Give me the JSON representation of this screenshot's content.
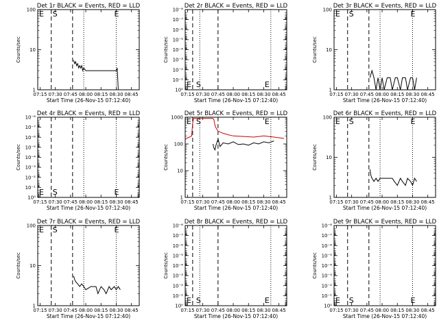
{
  "common": {
    "xticks": [
      "07:15",
      "07:30",
      "07:45",
      "08:00",
      "08:15",
      "08:30",
      "08:45"
    ],
    "xlabel": "Start Time (26-Nov-15 07:12:40)",
    "ylabel": "Counts/sec",
    "marker_s": "S",
    "marker_e": "E",
    "colors": {
      "events": "#000000",
      "lld": "#cc0000"
    }
  },
  "chart_data": [
    {
      "type": "line",
      "title": "Det 1r BLACK = Events, RED = LLD",
      "xlim": [
        "07:12:40",
        "08:52:40"
      ],
      "yscale": "log",
      "ylim": [
        1,
        100
      ],
      "yticks": [
        "1",
        "10",
        "100"
      ],
      "dashed_lines": [
        "07:26",
        "07:47"
      ],
      "dotted_lines": [
        "07:58",
        "08:30"
      ],
      "s_marker_at": "07:26",
      "e_marker_at": "08:30",
      "marker_row": "top",
      "series": [
        {
          "name": "Events",
          "color": "#000000",
          "x": [
            "07:48",
            "07:49",
            "07:50",
            "07:51",
            "07:52",
            "07:53",
            "07:54",
            "07:55",
            "07:56",
            "07:57",
            "07:58",
            "08:00",
            "08:05",
            "08:10",
            "08:15",
            "08:20",
            "08:25",
            "08:30",
            "08:31",
            "08:32"
          ],
          "y": [
            5.5,
            4.5,
            5,
            4,
            4.5,
            3.5,
            4,
            3.5,
            4,
            3,
            3.5,
            3,
            3,
            3,
            3,
            3,
            3,
            3,
            3.5,
            1
          ]
        }
      ]
    },
    {
      "type": "line",
      "title": "Det 2r BLACK = Events, RED = LLD",
      "xlim": [
        "07:12:40",
        "08:52:40"
      ],
      "yscale": "log",
      "ylim": [
        1,
        1e-08
      ],
      "yticks": [
        "10⁰",
        "10⁻¹",
        "10⁻²",
        "10⁻³",
        "10⁻⁴",
        "10⁻⁵",
        "10⁻⁶",
        "10⁻⁷",
        "10⁻⁸"
      ],
      "dashed_lines": [
        "07:20",
        "07:45"
      ],
      "dotted_lines": [
        "07:27",
        "08:37"
      ],
      "s_marker_at": "07:22",
      "e_marker_at": "08:33",
      "marker_row": "bottom",
      "series": []
    },
    {
      "type": "line",
      "title": "Det 3r BLACK = Events, RED = LLD",
      "xlim": [
        "07:12:40",
        "08:52:40"
      ],
      "yscale": "log",
      "ylim": [
        1,
        100
      ],
      "yticks": [
        "1",
        "10",
        "100"
      ],
      "dashed_lines": [
        "07:26",
        "07:47"
      ],
      "dotted_lines": [
        "07:58",
        "08:30"
      ],
      "s_marker_at": "07:26",
      "e_marker_at": "08:30",
      "marker_row": "top",
      "series": [
        {
          "name": "Events",
          "color": "#000000",
          "x": [
            "07:48",
            "07:50",
            "07:52",
            "07:54",
            "07:56",
            "07:58",
            "08:00",
            "08:02",
            "08:05",
            "08:08",
            "08:10",
            "08:13",
            "08:15",
            "08:18",
            "08:20",
            "08:23",
            "08:25",
            "08:28",
            "08:30",
            "08:32",
            "08:34"
          ],
          "y": [
            2,
            3,
            2,
            1,
            2,
            1,
            2,
            1,
            2,
            2,
            1,
            2,
            2,
            1,
            2,
            2,
            1,
            2,
            2,
            1,
            2
          ]
        }
      ]
    },
    {
      "type": "line",
      "title": "Det 4r BLACK = Events, RED = LLD",
      "xlim": [
        "07:12:40",
        "08:52:40"
      ],
      "yscale": "log",
      "ylim": [
        1,
        1e-08
      ],
      "yticks": [
        "10⁰",
        "10⁻¹",
        "10⁻²",
        "10⁻³",
        "10⁻⁴",
        "10⁻⁵",
        "10⁻⁶",
        "10⁻⁷",
        "10⁻⁸"
      ],
      "dashed_lines": [
        "07:26",
        "07:47"
      ],
      "dotted_lines": [
        "07:58",
        "08:30"
      ],
      "s_marker_at": "07:26",
      "e_marker_at": "08:30",
      "marker_row": "bottom",
      "series": []
    },
    {
      "type": "line",
      "title": "Det 5r BLACK = Events, RED = LLD",
      "xlim": [
        "07:12:40",
        "08:52:40"
      ],
      "yscale": "log",
      "ylim": [
        1,
        1000
      ],
      "yticks": [
        "1",
        "10",
        "100",
        "1000"
      ],
      "dashed_lines": [
        "07:20",
        "07:45"
      ],
      "dotted_lines": [
        "07:27",
        "08:37"
      ],
      "s_marker_at": "07:22",
      "e_marker_at": "08:33",
      "marker_row": "top",
      "series": [
        {
          "name": "LLD",
          "color": "#cc0000",
          "x": [
            "07:13",
            "07:15",
            "07:17",
            "07:19",
            "07:20",
            "07:21",
            "07:40",
            "07:41",
            "07:42",
            "07:43",
            "07:45",
            "07:50",
            "07:55",
            "08:00",
            "08:10",
            "08:20",
            "08:30",
            "08:40",
            "08:50"
          ],
          "y": [
            150,
            170,
            180,
            200,
            600,
            900,
            900,
            800,
            500,
            400,
            300,
            250,
            220,
            200,
            190,
            180,
            200,
            180,
            160
          ]
        },
        {
          "name": "Events",
          "color": "#000000",
          "x": [
            "07:40",
            "07:41",
            "07:42",
            "07:43",
            "07:45",
            "07:47",
            "07:50",
            "07:55",
            "08:00",
            "08:05",
            "08:10",
            "08:15",
            "08:20",
            "08:25",
            "08:30",
            "08:35",
            "08:40"
          ],
          "y": [
            100,
            70,
            60,
            90,
            150,
            80,
            110,
            100,
            120,
            95,
            100,
            90,
            110,
            100,
            120,
            110,
            130
          ]
        }
      ]
    },
    {
      "type": "line",
      "title": "Det 6r BLACK = Events, RED = LLD",
      "xlim": [
        "07:12:40",
        "08:52:40"
      ],
      "yscale": "log",
      "ylim": [
        1,
        100
      ],
      "yticks": [
        "1",
        "10",
        "100"
      ],
      "dashed_lines": [
        "07:26",
        "07:47"
      ],
      "dotted_lines": [
        "07:58",
        "08:30"
      ],
      "s_marker_at": "07:26",
      "e_marker_at": "08:30",
      "marker_row": "top",
      "series": [
        {
          "name": "Events",
          "color": "#000000",
          "x": [
            "07:48",
            "07:49",
            "07:50",
            "07:52",
            "07:54",
            "07:56",
            "07:58",
            "08:00",
            "08:05",
            "08:10",
            "08:12",
            "08:15",
            "08:18",
            "08:20",
            "08:23",
            "08:25",
            "08:28",
            "08:30",
            "08:32",
            "08:34"
          ],
          "y": [
            5,
            3.5,
            3,
            2.5,
            3,
            2.5,
            3,
            3,
            3,
            3,
            2.5,
            2,
            3,
            2.5,
            2,
            3,
            2.5,
            2,
            3,
            2.5
          ]
        }
      ]
    },
    {
      "type": "line",
      "title": "Det 7r BLACK = Events, RED = LLD",
      "xlim": [
        "07:12:40",
        "08:52:40"
      ],
      "yscale": "log",
      "ylim": [
        1,
        100
      ],
      "yticks": [
        "1",
        "10",
        "100"
      ],
      "dashed_lines": [
        "07:26",
        "07:47"
      ],
      "dotted_lines": [
        "07:58",
        "08:30"
      ],
      "s_marker_at": "07:26",
      "e_marker_at": "08:30",
      "marker_row": "top",
      "series": [
        {
          "name": "Events",
          "color": "#000000",
          "x": [
            "07:48",
            "07:49",
            "07:50",
            "07:52",
            "07:54",
            "07:56",
            "07:58",
            "08:00",
            "08:05",
            "08:10",
            "08:12",
            "08:15",
            "08:18",
            "08:20",
            "08:23",
            "08:25",
            "08:28",
            "08:30",
            "08:32",
            "08:34"
          ],
          "y": [
            5.5,
            4.5,
            4,
            3.5,
            3,
            3.5,
            3,
            2.5,
            3,
            3,
            2,
            3,
            2.5,
            2,
            3,
            2.5,
            3,
            2.5,
            3,
            2.5
          ]
        }
      ]
    },
    {
      "type": "line",
      "title": "Det 8r BLACK = Events, RED = LLD",
      "xlim": [
        "07:12:40",
        "08:52:40"
      ],
      "yscale": "log",
      "ylim": [
        1,
        1e-08
      ],
      "yticks": [
        "10⁰",
        "10⁻¹",
        "10⁻²",
        "10⁻³",
        "10⁻⁴",
        "10⁻⁵",
        "10⁻⁶",
        "10⁻⁷",
        "10⁻⁸"
      ],
      "dashed_lines": [
        "07:20",
        "07:45"
      ],
      "dotted_lines": [
        "07:27",
        "08:37"
      ],
      "s_marker_at": "07:22",
      "e_marker_at": "08:33",
      "marker_row": "bottom",
      "series": []
    },
    {
      "type": "line",
      "title": "Det 9r BLACK = Events, RED = LLD",
      "xlim": [
        "07:12:40",
        "08:52:40"
      ],
      "yscale": "log",
      "ylim": [
        1,
        1e-08
      ],
      "yticks": [
        "10⁰",
        "10⁻¹",
        "10⁻²",
        "10⁻³",
        "10⁻⁴",
        "10⁻⁵",
        "10⁻⁶",
        "10⁻⁷",
        "10⁻⁸"
      ],
      "dashed_lines": [
        "07:26",
        "07:47"
      ],
      "dotted_lines": [
        "07:58",
        "08:30"
      ],
      "s_marker_at": "07:26",
      "e_marker_at": "08:30",
      "marker_row": "bottom",
      "series": []
    }
  ]
}
